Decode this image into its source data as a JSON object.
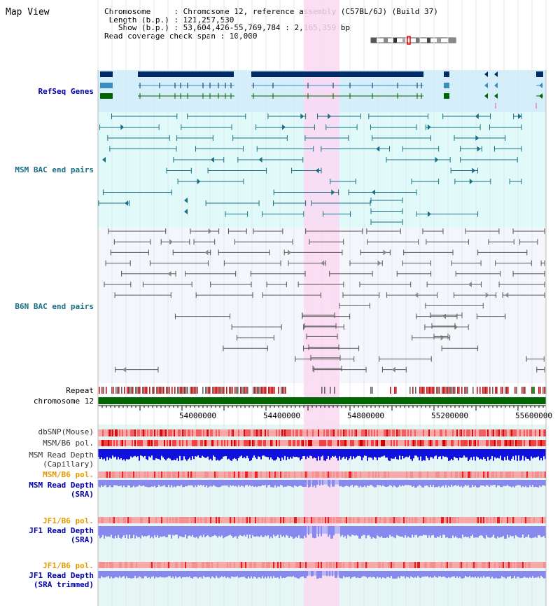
{
  "title": "Map View",
  "info": {
    "chromosome_line": "Chromosome     : Chromosome 12, reference assembly (C57BL/6J) (Build 37)",
    "length_line": " Length (b.p.) : 121,257,530",
    "show_line": "   Show (b.p.) : 53,604,426-55,769,784 : 2,165,359 bp",
    "coverage_line": "Read coverage check span : 10,000"
  },
  "tracks": {
    "refseq": "RefSeq Genes",
    "msm_bac": "MSM BAC end pairs",
    "b6n_bac": "B6N BAC end pairs",
    "repeat": "Repeat",
    "chromosome": "chromosome 12",
    "dbsnp": "dbSNP(Mouse)",
    "msm_b6_pol_1": "MSM/B6 pol.",
    "msm_depth_cap_1": "MSM Read Depth",
    "msm_depth_cap_2": "(Capillary)",
    "msm_b6_pol_2": "MSM/B6 pol.",
    "msm_depth_sra_1": "MSM Read Depth",
    "msm_depth_sra_2": "(SRA)",
    "jf1_b6_pol_1": "JF1/B6 pol.",
    "jf1_depth_sra_1": "JF1 Read Depth",
    "jf1_depth_sra_2": "(SRA)",
    "jf1_b6_pol_2": "JF1/B6 pol.",
    "jf1_depth_trim_1": "JF1 Read Depth",
    "jf1_depth_trim_2": "(SRA trimmed)"
  },
  "axis": {
    "ticks": [
      "54000000",
      "54400000",
      "54800000",
      "55200000",
      "55600000"
    ]
  },
  "colors": {
    "refseq_bg": "#d4eefa",
    "msm_bg": "#e0fafa",
    "b6n_bg": "#f4f6fb",
    "highlight": "#fbd8f2",
    "gene_dark": "#002b66",
    "gene_mid": "#3a8fbf",
    "gene_green": "#006400",
    "msm_line": "#1a6f86",
    "b6n_line": "#555555",
    "chrom_bar": "#006400",
    "pol_red": "#ee4444",
    "depth_dark_blue": "#1111dd",
    "depth_light_blue": "#8888ee",
    "lower_bg": "#e6f6f4"
  }
}
